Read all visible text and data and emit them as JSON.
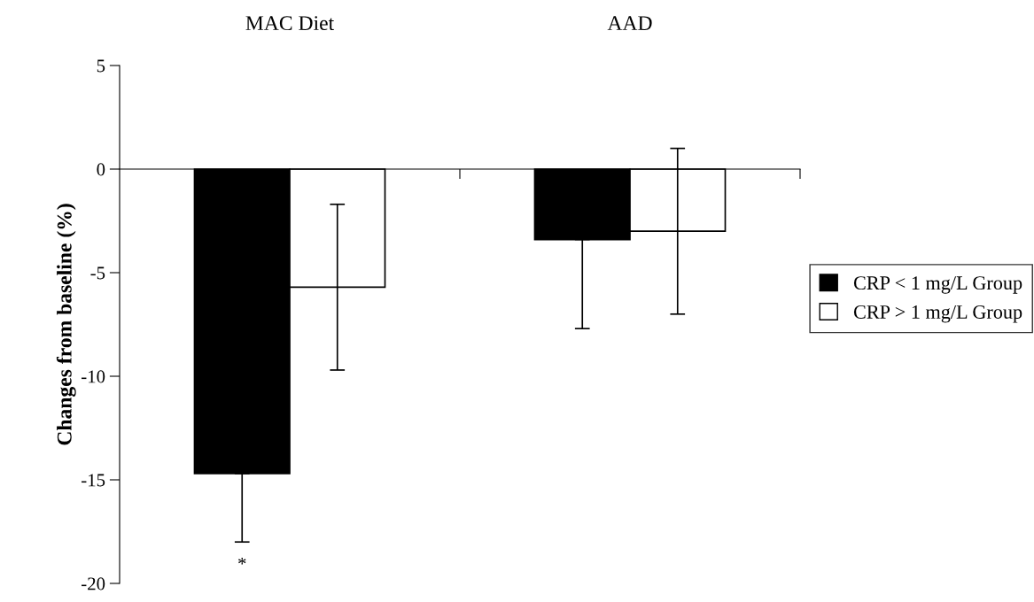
{
  "chart_data": {
    "type": "bar",
    "ylabel": "Changes from baseline (%)",
    "categories": [
      "MAC Diet",
      "AAD"
    ],
    "series": [
      {
        "name": "CRP < 1 mg/L Group",
        "color": "#000000",
        "values": [
          -14.7,
          -3.4
        ],
        "errors": [
          [
            -18.0,
            -14.7
          ],
          [
            -7.7,
            -3.4
          ]
        ]
      },
      {
        "name": "CRP > 1 mg/L Group",
        "color": "#ffffff",
        "values": [
          -5.7,
          -3.0
        ],
        "errors": [
          4.0,
          4.0
        ]
      }
    ],
    "ylim": [
      -20,
      5
    ],
    "yticks": [
      -20,
      -15,
      -10,
      -5,
      0,
      5
    ],
    "legend": "right",
    "annotations": [
      "*"
    ]
  }
}
